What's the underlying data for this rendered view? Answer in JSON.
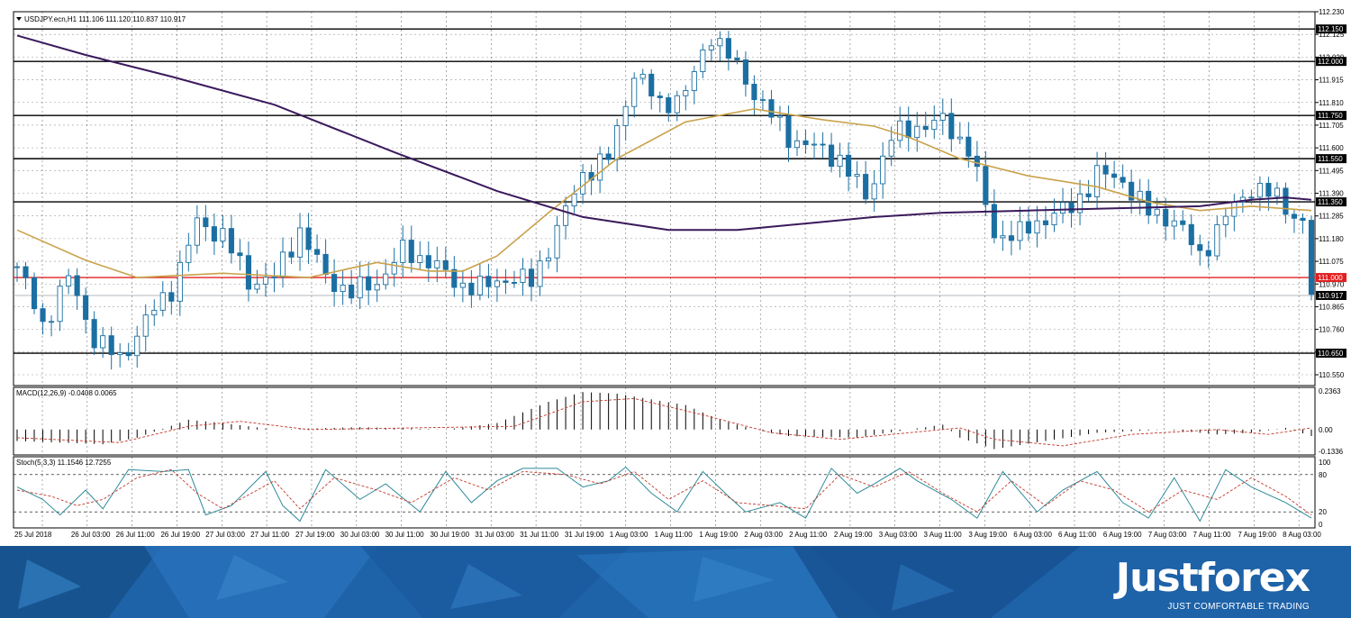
{
  "chart_data": {
    "type": "candlestick",
    "symbol_header": "USDJPY.ecn,H1  111.106 111.120 110.837 110.917",
    "price_axis": {
      "ylim": [
        110.5,
        112.23
      ],
      "ticks": [
        "112.230",
        "112.125",
        "112.020",
        "111.915",
        "111.810",
        "111.705",
        "111.600",
        "111.495",
        "111.390",
        "111.285",
        "111.180",
        "111.075",
        "110.970",
        "110.865",
        "110.760",
        "110.655",
        "110.550"
      ]
    },
    "x_labels": [
      "25 Jul 2018",
      "26 Jul 03:00",
      "26 Jul 11:00",
      "26 Jul 19:00",
      "27 Jul 03:00",
      "27 Jul 11:00",
      "27 Jul 19:00",
      "30 Jul 03:00",
      "30 Jul 11:00",
      "30 Jul 19:00",
      "31 Jul 03:00",
      "31 Jul 11:00",
      "31 Jul 19:00",
      "1 Aug 03:00",
      "1 Aug 11:00",
      "1 Aug 19:00",
      "2 Aug 03:00",
      "2 Aug 11:00",
      "2 Aug 19:00",
      "3 Aug 03:00",
      "3 Aug 11:00",
      "3 Aug 19:00",
      "6 Aug 03:00",
      "6 Aug 11:00",
      "6 Aug 19:00",
      "7 Aug 03:00",
      "7 Aug 11:00",
      "7 Aug 19:00",
      "8 Aug 03:00"
    ],
    "levels": [
      {
        "label": "112.150",
        "value": 112.15,
        "color": "#000000"
      },
      {
        "label": "112.000",
        "value": 112.0,
        "color": "#000000"
      },
      {
        "label": "111.750",
        "value": 111.75,
        "color": "#000000"
      },
      {
        "label": "111.550",
        "value": 111.55,
        "color": "#000000"
      },
      {
        "label": "111.350",
        "value": 111.35,
        "color": "#000000"
      },
      {
        "label": "111.000",
        "value": 111.0,
        "color": "#e02020"
      },
      {
        "label": "110.650",
        "value": 110.65,
        "color": "#000000"
      }
    ],
    "current_price": {
      "label": "110.917",
      "value": 110.917
    },
    "close_path": [
      [
        0,
        111.05
      ],
      [
        3,
        110.78
      ],
      [
        6,
        111.0
      ],
      [
        9,
        110.72
      ],
      [
        12,
        110.62
      ],
      [
        15,
        110.8
      ],
      [
        18,
        110.95
      ],
      [
        21,
        111.25
      ],
      [
        24,
        111.2
      ],
      [
        27,
        110.98
      ],
      [
        30,
        111.0
      ],
      [
        33,
        111.22
      ],
      [
        36,
        111.0
      ],
      [
        39,
        110.93
      ],
      [
        42,
        110.98
      ],
      [
        45,
        111.12
      ],
      [
        48,
        111.08
      ],
      [
        51,
        110.98
      ],
      [
        54,
        110.95
      ],
      [
        57,
        111.0
      ],
      [
        60,
        110.98
      ],
      [
        63,
        111.22
      ],
      [
        66,
        111.48
      ],
      [
        69,
        111.55
      ],
      [
        72,
        111.95
      ],
      [
        75,
        111.8
      ],
      [
        78,
        111.85
      ],
      [
        81,
        112.13
      ],
      [
        84,
        111.97
      ],
      [
        87,
        111.8
      ],
      [
        90,
        111.65
      ],
      [
        93,
        111.6
      ],
      [
        96,
        111.55
      ],
      [
        99,
        111.37
      ],
      [
        102,
        111.65
      ],
      [
        105,
        111.7
      ],
      [
        108,
        111.72
      ],
      [
        111,
        111.6
      ],
      [
        114,
        111.2
      ],
      [
        117,
        111.2
      ],
      [
        120,
        111.28
      ],
      [
        123,
        111.32
      ],
      [
        126,
        111.48
      ],
      [
        129,
        111.45
      ],
      [
        132,
        111.3
      ],
      [
        135,
        111.27
      ],
      [
        138,
        111.1
      ],
      [
        141,
        111.28
      ],
      [
        144,
        111.42
      ],
      [
        147,
        111.37
      ],
      [
        150,
        111.25
      ],
      [
        151,
        110.92
      ]
    ],
    "ma_fast": [
      [
        0,
        111.22
      ],
      [
        8,
        111.08
      ],
      [
        14,
        111.0
      ],
      [
        24,
        111.02
      ],
      [
        34,
        111.0
      ],
      [
        42,
        111.07
      ],
      [
        48,
        111.03
      ],
      [
        52,
        111.03
      ],
      [
        56,
        111.1
      ],
      [
        62,
        111.3
      ],
      [
        70,
        111.55
      ],
      [
        78,
        111.72
      ],
      [
        86,
        111.78
      ],
      [
        94,
        111.73
      ],
      [
        100,
        111.7
      ],
      [
        104,
        111.65
      ],
      [
        110,
        111.55
      ],
      [
        118,
        111.47
      ],
      [
        126,
        111.42
      ],
      [
        132,
        111.35
      ],
      [
        138,
        111.31
      ],
      [
        144,
        111.33
      ],
      [
        151,
        111.31
      ]
    ],
    "ma_slow": [
      [
        0,
        112.12
      ],
      [
        8,
        112.03
      ],
      [
        18,
        111.93
      ],
      [
        30,
        111.8
      ],
      [
        44,
        111.58
      ],
      [
        56,
        111.4
      ],
      [
        66,
        111.28
      ],
      [
        76,
        111.22
      ],
      [
        84,
        111.22
      ],
      [
        92,
        111.25
      ],
      [
        100,
        111.28
      ],
      [
        108,
        111.3
      ],
      [
        118,
        111.31
      ],
      [
        128,
        111.32
      ],
      [
        138,
        111.33
      ],
      [
        144,
        111.36
      ],
      [
        148,
        111.37
      ],
      [
        151,
        111.36
      ]
    ],
    "macd": {
      "label": "MACD(12,26,9) -0.0408 0.0065",
      "ylim": [
        -0.1336,
        0.2363
      ],
      "ticks": [
        "0.2363",
        "0.00",
        "-0.1336"
      ],
      "histogram_path": [
        [
          0,
          -0.07
        ],
        [
          10,
          -0.09
        ],
        [
          14,
          -0.05
        ],
        [
          20,
          0.06
        ],
        [
          24,
          0.04
        ],
        [
          30,
          0.0
        ],
        [
          40,
          0.015
        ],
        [
          50,
          0.0
        ],
        [
          56,
          0.04
        ],
        [
          62,
          0.17
        ],
        [
          66,
          0.23
        ],
        [
          70,
          0.22
        ],
        [
          78,
          0.15
        ],
        [
          82,
          0.06
        ],
        [
          86,
          0.0
        ],
        [
          90,
          -0.04
        ],
        [
          98,
          -0.05
        ],
        [
          104,
          0.0
        ],
        [
          108,
          0.03
        ],
        [
          110,
          -0.05
        ],
        [
          114,
          -0.12
        ],
        [
          120,
          -0.07
        ],
        [
          126,
          -0.02
        ],
        [
          134,
          0.0
        ],
        [
          140,
          -0.03
        ],
        [
          144,
          -0.02
        ],
        [
          148,
          0.01
        ],
        [
          151,
          -0.04
        ]
      ],
      "signal_path": [
        [
          0,
          -0.05
        ],
        [
          12,
          -0.08
        ],
        [
          20,
          0.02
        ],
        [
          26,
          0.05
        ],
        [
          34,
          0.0
        ],
        [
          46,
          0.01
        ],
        [
          58,
          0.02
        ],
        [
          66,
          0.17
        ],
        [
          72,
          0.19
        ],
        [
          80,
          0.09
        ],
        [
          88,
          -0.02
        ],
        [
          96,
          -0.06
        ],
        [
          104,
          -0.02
        ],
        [
          110,
          0.01
        ],
        [
          114,
          -0.06
        ],
        [
          122,
          -0.1
        ],
        [
          130,
          -0.03
        ],
        [
          140,
          0.0
        ],
        [
          146,
          -0.03
        ],
        [
          151,
          0.01
        ]
      ]
    },
    "stoch": {
      "label": "Stoch(5,3,3) 11.1546 12.7255",
      "ylim": [
        0,
        100
      ],
      "ticks": [
        "100",
        "80",
        "20",
        "0"
      ],
      "levels": [
        80,
        20
      ],
      "main_path": [
        [
          0,
          60
        ],
        [
          3,
          40
        ],
        [
          5,
          15
        ],
        [
          8,
          55
        ],
        [
          10,
          25
        ],
        [
          13,
          88
        ],
        [
          17,
          85
        ],
        [
          20,
          88
        ],
        [
          22,
          15
        ],
        [
          25,
          30
        ],
        [
          29,
          85
        ],
        [
          31,
          30
        ],
        [
          33,
          5
        ],
        [
          36,
          88
        ],
        [
          40,
          40
        ],
        [
          43,
          65
        ],
        [
          47,
          20
        ],
        [
          50,
          85
        ],
        [
          53,
          35
        ],
        [
          56,
          70
        ],
        [
          59,
          90
        ],
        [
          63,
          90
        ],
        [
          66,
          60
        ],
        [
          69,
          70
        ],
        [
          71,
          92
        ],
        [
          74,
          50
        ],
        [
          77,
          20
        ],
        [
          80,
          85
        ],
        [
          83,
          45
        ],
        [
          85,
          20
        ],
        [
          89,
          35
        ],
        [
          92,
          10
        ],
        [
          95,
          90
        ],
        [
          98,
          50
        ],
        [
          100,
          65
        ],
        [
          103,
          90
        ],
        [
          105,
          70
        ],
        [
          109,
          40
        ],
        [
          112,
          10
        ],
        [
          115,
          85
        ],
        [
          119,
          20
        ],
        [
          122,
          55
        ],
        [
          126,
          85
        ],
        [
          129,
          35
        ],
        [
          132,
          10
        ],
        [
          135,
          75
        ],
        [
          138,
          5
        ],
        [
          141,
          88
        ],
        [
          144,
          60
        ],
        [
          148,
          35
        ],
        [
          151,
          10
        ]
      ],
      "signal_path": [
        [
          0,
          55
        ],
        [
          4,
          45
        ],
        [
          7,
          30
        ],
        [
          10,
          40
        ],
        [
          14,
          75
        ],
        [
          18,
          88
        ],
        [
          21,
          50
        ],
        [
          24,
          25
        ],
        [
          30,
          70
        ],
        [
          33,
          25
        ],
        [
          37,
          75
        ],
        [
          42,
          55
        ],
        [
          46,
          35
        ],
        [
          51,
          75
        ],
        [
          55,
          55
        ],
        [
          59,
          85
        ],
        [
          64,
          80
        ],
        [
          68,
          65
        ],
        [
          72,
          85
        ],
        [
          76,
          40
        ],
        [
          80,
          70
        ],
        [
          84,
          35
        ],
        [
          88,
          30
        ],
        [
          92,
          25
        ],
        [
          96,
          80
        ],
        [
          100,
          60
        ],
        [
          104,
          85
        ],
        [
          108,
          50
        ],
        [
          112,
          20
        ],
        [
          116,
          70
        ],
        [
          120,
          30
        ],
        [
          124,
          70
        ],
        [
          128,
          55
        ],
        [
          132,
          20
        ],
        [
          136,
          55
        ],
        [
          140,
          40
        ],
        [
          144,
          75
        ],
        [
          148,
          45
        ],
        [
          151,
          15
        ]
      ]
    }
  },
  "brand": {
    "name": "Justforex",
    "tagline": "JUST COMFORTABLE TRADING"
  }
}
